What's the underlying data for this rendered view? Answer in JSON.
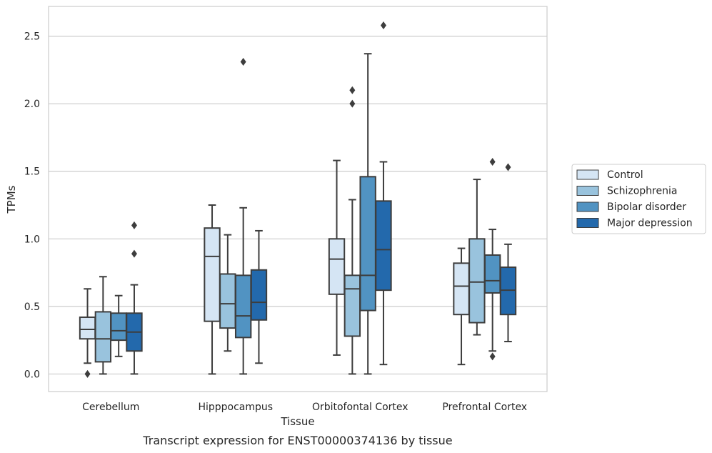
{
  "chart_data": {
    "type": "box",
    "caption": "Transcript expression for ENST00000374136 by tissue",
    "xlabel": "Tissue",
    "ylabel": "TPMs",
    "ylim": [
      -0.13,
      2.72
    ],
    "yticks": [
      0.0,
      0.5,
      1.0,
      1.5,
      2.0,
      2.5
    ],
    "ytick_labels": [
      "0.0",
      "0.5",
      "1.0",
      "1.5",
      "2.0",
      "2.5"
    ],
    "grid": "horizontal",
    "legend_position": "right",
    "categories": [
      "Cerebellum",
      "Hipppocampus",
      "Orbitofontal Cortex",
      "Prefrontal Cortex"
    ],
    "series": [
      {
        "name": "Control",
        "color": "#d5e5f4",
        "boxes": [
          {
            "q1": 0.26,
            "median": 0.33,
            "q3": 0.42,
            "whisker_low": 0.08,
            "whisker_high": 0.63,
            "outliers": [
              0.0
            ]
          },
          {
            "q1": 0.39,
            "median": 0.87,
            "q3": 1.08,
            "whisker_low": 0.0,
            "whisker_high": 1.25,
            "outliers": []
          },
          {
            "q1": 0.59,
            "median": 0.85,
            "q3": 1.0,
            "whisker_low": 0.14,
            "whisker_high": 1.58,
            "outliers": []
          },
          {
            "q1": 0.44,
            "median": 0.65,
            "q3": 0.82,
            "whisker_low": 0.07,
            "whisker_high": 0.93,
            "outliers": []
          }
        ]
      },
      {
        "name": "Schizophrenia",
        "color": "#99c3dd",
        "boxes": [
          {
            "q1": 0.09,
            "median": 0.26,
            "q3": 0.46,
            "whisker_low": 0.0,
            "whisker_high": 0.72,
            "outliers": []
          },
          {
            "q1": 0.34,
            "median": 0.52,
            "q3": 0.74,
            "whisker_low": 0.17,
            "whisker_high": 1.03,
            "outliers": []
          },
          {
            "q1": 0.28,
            "median": 0.63,
            "q3": 0.73,
            "whisker_low": 0.0,
            "whisker_high": 1.29,
            "outliers": [
              2.0,
              2.1
            ]
          },
          {
            "q1": 0.38,
            "median": 0.68,
            "q3": 1.0,
            "whisker_low": 0.29,
            "whisker_high": 1.44,
            "outliers": []
          }
        ]
      },
      {
        "name": "Bipolar disorder",
        "color": "#5193c2",
        "boxes": [
          {
            "q1": 0.25,
            "median": 0.32,
            "q3": 0.45,
            "whisker_low": 0.13,
            "whisker_high": 0.58,
            "outliers": []
          },
          {
            "q1": 0.27,
            "median": 0.43,
            "q3": 0.73,
            "whisker_low": 0.0,
            "whisker_high": 1.23,
            "outliers": [
              2.31
            ]
          },
          {
            "q1": 0.47,
            "median": 0.73,
            "q3": 1.46,
            "whisker_low": 0.0,
            "whisker_high": 2.37,
            "outliers": []
          },
          {
            "q1": 0.6,
            "median": 0.69,
            "q3": 0.88,
            "whisker_low": 0.17,
            "whisker_high": 1.07,
            "outliers": [
              0.13,
              1.57
            ]
          }
        ]
      },
      {
        "name": "Major depression",
        "color": "#2369ac",
        "boxes": [
          {
            "q1": 0.17,
            "median": 0.31,
            "q3": 0.45,
            "whisker_low": 0.0,
            "whisker_high": 0.66,
            "outliers": [
              0.89,
              1.1
            ]
          },
          {
            "q1": 0.4,
            "median": 0.53,
            "q3": 0.77,
            "whisker_low": 0.08,
            "whisker_high": 1.06,
            "outliers": []
          },
          {
            "q1": 0.62,
            "median": 0.92,
            "q3": 1.28,
            "whisker_low": 0.07,
            "whisker_high": 1.57,
            "outliers": [
              2.58
            ]
          },
          {
            "q1": 0.44,
            "median": 0.62,
            "q3": 0.79,
            "whisker_low": 0.24,
            "whisker_high": 0.96,
            "outliers": [
              1.53
            ]
          }
        ]
      }
    ]
  }
}
